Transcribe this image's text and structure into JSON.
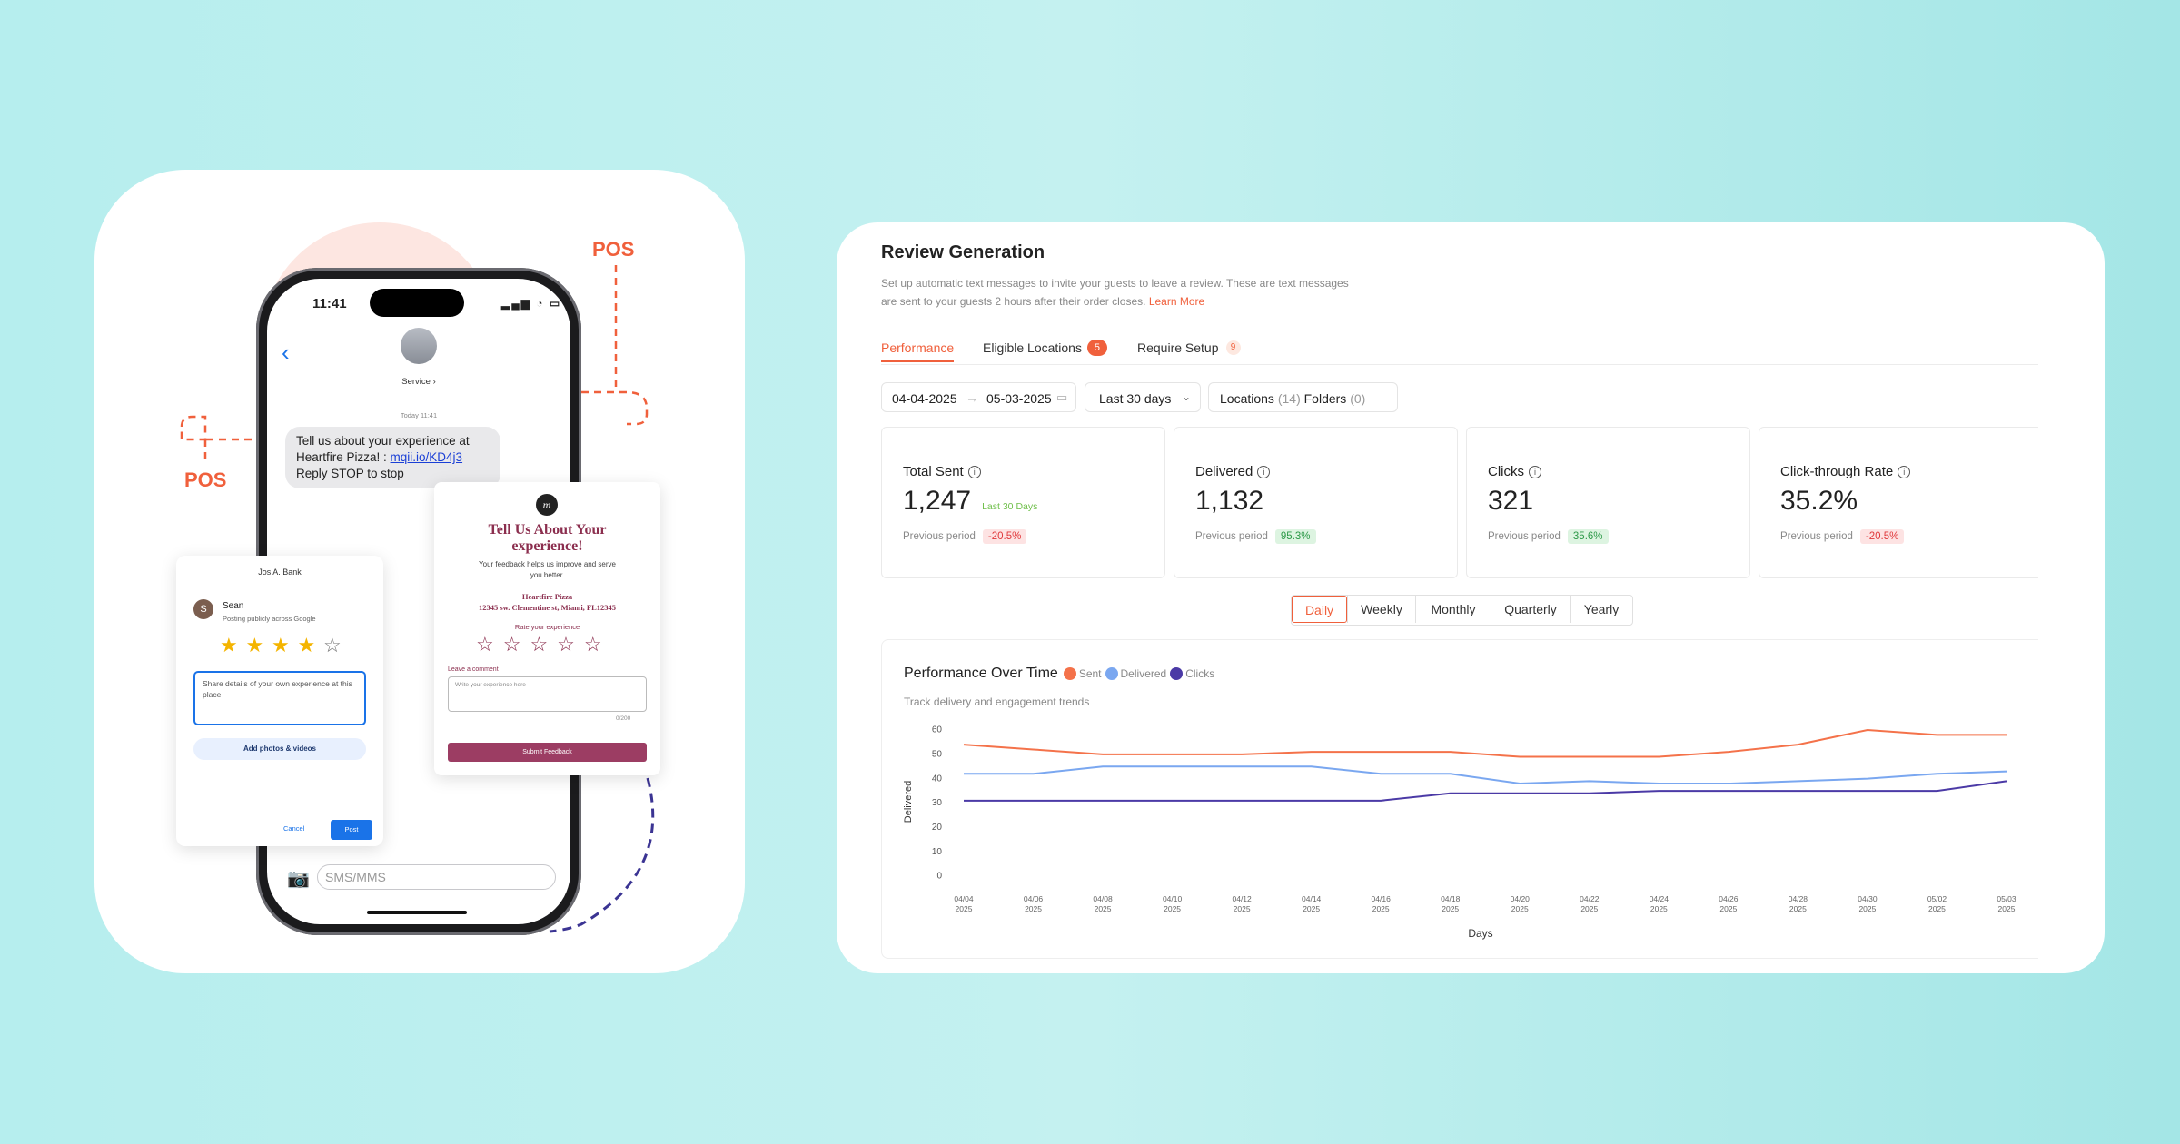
{
  "left_panel": {
    "pos_labels": [
      "POS",
      "POS"
    ],
    "phone": {
      "time": "11:41",
      "contact": "Service ›",
      "timestamp": "Today 11:41",
      "message_text": "Tell us about your experience at Heartfire Pizza! : ",
      "message_link": "mqii.io/KD4j3",
      "message_end": " Reply STOP to stop",
      "input_placeholder": "SMS/MMS"
    },
    "google_review": {
      "business": "Jos A. Bank",
      "avatar": "S",
      "user": "Sean",
      "note": "Posting publicly across Google",
      "rating": 4,
      "rating_scale": 5,
      "placeholder": "Share details of your own experience at this place",
      "add_photos": "Add photos & videos",
      "cancel": "Cancel",
      "post": "Post"
    },
    "feedback_form": {
      "title": "Tell Us About Your experience!",
      "subtitle": "Your feedback helps us improve and serve you better.",
      "business": "Heartfire Pizza",
      "address": "12345 sw. Clementine st, Miami, FL12345",
      "rate_label": "Rate your experience",
      "comment_label": "Leave a comment",
      "comment_placeholder": "Write your experience here",
      "counter": "0/200",
      "submit": "Submit Feedback"
    }
  },
  "dashboard": {
    "title": "Review Generation",
    "description": "Set up automatic text messages to invite your guests to leave a review. These are text messages are sent to your guests 2 hours after their order closes.",
    "learn_more": "Learn More",
    "tabs": [
      {
        "label": "Performance"
      },
      {
        "label": "Eligible Locations",
        "count": 5
      },
      {
        "label": "Require Setup",
        "count": 9
      }
    ],
    "filters": {
      "start_date": "04-04-2025",
      "end_date": "05-03-2025",
      "range": "Last 30 days",
      "locations_label": "Locations",
      "locations_count": "(14)",
      "folders_label": "Folders",
      "folders_count": "(0)"
    },
    "stats": [
      {
        "label": "Total Sent",
        "value": "1,247",
        "note": "Last 30 Days",
        "previous_label": "Previous period",
        "change": "-20.5%"
      },
      {
        "label": "Delivered",
        "value": "1,132",
        "previous_label": "Previous period",
        "change": "95.3%"
      },
      {
        "label": "Clicks",
        "value": "321",
        "previous_label": "Previous period",
        "change": "35.6%"
      },
      {
        "label": "Click-through Rate",
        "value": "35.2%",
        "previous_label": "Previous period",
        "change": "-20.5%"
      }
    ],
    "periods": [
      "Daily",
      "Weekly",
      "Monthly",
      "Quarterly",
      "Yearly"
    ]
  },
  "chart_data": {
    "type": "line",
    "title": "Performance Over Time",
    "subtitle": "Track delivery and engagement trends",
    "x_label": "Days",
    "y_label": "Delivered",
    "categories": [
      "04/04 2025",
      "04/06 2025",
      "04/08 2025",
      "04/10 2025",
      "04/12 2025",
      "04/14 2025",
      "04/16 2025",
      "04/18 2025",
      "04/20 2025",
      "04/22 2025",
      "04/24 2025",
      "04/26 2025",
      "04/28 2025",
      "04/30 2025",
      "05/02 2025",
      "05/03 2025"
    ],
    "series": [
      {
        "name": "Sent",
        "color": "#f4724a",
        "values": [
          54,
          52,
          50,
          50,
          50,
          51,
          51,
          51,
          49,
          49,
          49,
          51,
          54,
          60,
          58,
          58
        ]
      },
      {
        "name": "Delivered",
        "color": "#7aa7f0",
        "values": [
          42,
          42,
          45,
          45,
          45,
          45,
          42,
          42,
          38,
          39,
          38,
          38,
          39,
          40,
          42,
          43
        ]
      },
      {
        "name": "Clicks",
        "color": "#4b3aa6",
        "values": [
          31,
          31,
          31,
          31,
          31,
          31,
          31,
          34,
          34,
          34,
          35,
          35,
          35,
          35,
          35,
          39
        ]
      }
    ],
    "ylim": [
      0,
      60
    ],
    "yticks": [
      0,
      10,
      20,
      30,
      40,
      50,
      60
    ],
    "grid": false,
    "legend": "top"
  }
}
